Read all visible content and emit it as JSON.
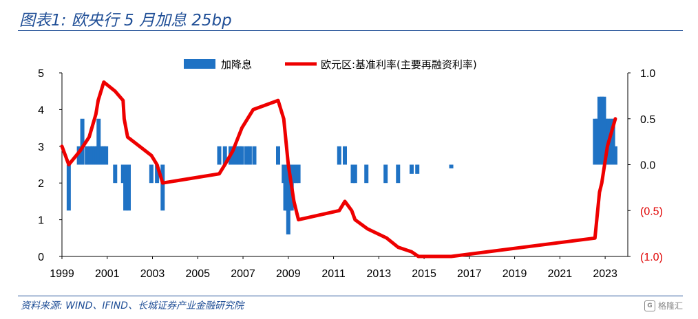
{
  "title": "图表1:  欧央行 5 月加息 25bp",
  "source": "资料来源:  WIND、IFIND、长城证券产业金融研究院",
  "watermark": "格隆汇",
  "colors": {
    "bar": "#1f72c4",
    "line": "#ee0000",
    "rule": "#1f4e96"
  },
  "chart_data": {
    "type": "bar+line",
    "legend": [
      "加降息",
      "欧元区:基准利率(主要再融资利率)"
    ],
    "legend_position": "top-center",
    "grid": false,
    "x_axis": {
      "range": [
        1999,
        2024
      ],
      "ticks": [
        "1999",
        "2001",
        "2003",
        "2005",
        "2007",
        "2009",
        "2011",
        "2013",
        "2015",
        "2017",
        "2019",
        "2021",
        "2023"
      ]
    },
    "y_left": {
      "range": [
        0,
        5
      ],
      "ticks": [
        "0",
        "1",
        "2",
        "3",
        "4",
        "5"
      ]
    },
    "y_right": {
      "range": [
        -1.0,
        1.0
      ],
      "ticks": [
        "(1.0)",
        "(0.5)",
        "0.0",
        "0.5",
        "1.0"
      ]
    },
    "series": [
      {
        "name": "加降息",
        "type": "bar",
        "axis": "left",
        "baseline": 2.5,
        "points": [
          [
            1999.3,
            1.25
          ],
          [
            1999.75,
            3.0
          ],
          [
            1999.9,
            3.75
          ],
          [
            2000.1,
            3.0
          ],
          [
            2000.25,
            3.0
          ],
          [
            2000.35,
            3.0
          ],
          [
            2000.45,
            3.0
          ],
          [
            2000.55,
            3.0
          ],
          [
            2000.62,
            3.75
          ],
          [
            2000.75,
            3.0
          ],
          [
            2000.85,
            3.0
          ],
          [
            2000.95,
            3.0
          ],
          [
            2001.35,
            2.0
          ],
          [
            2001.7,
            2.0
          ],
          [
            2001.8,
            1.25
          ],
          [
            2001.95,
            1.25
          ],
          [
            2002.95,
            2.0
          ],
          [
            2003.2,
            2.0
          ],
          [
            2003.45,
            1.25
          ],
          [
            2005.95,
            3.0
          ],
          [
            2006.2,
            3.0
          ],
          [
            2006.45,
            3.0
          ],
          [
            2006.6,
            3.0
          ],
          [
            2006.75,
            3.0
          ],
          [
            2006.85,
            3.0
          ],
          [
            2006.95,
            3.0
          ],
          [
            2007.15,
            3.0
          ],
          [
            2007.3,
            3.0
          ],
          [
            2007.5,
            3.0
          ],
          [
            2008.55,
            3.0
          ],
          [
            2008.8,
            2.0
          ],
          [
            2008.87,
            1.25
          ],
          [
            2008.93,
            1.25
          ],
          [
            2009.0,
            0.6
          ],
          [
            2009.08,
            1.25
          ],
          [
            2009.15,
            1.25
          ],
          [
            2009.25,
            2.0
          ],
          [
            2009.35,
            2.0
          ],
          [
            2009.45,
            2.0
          ],
          [
            2011.25,
            3.0
          ],
          [
            2011.5,
            3.0
          ],
          [
            2011.85,
            2.0
          ],
          [
            2011.95,
            2.0
          ],
          [
            2012.45,
            2.0
          ],
          [
            2013.3,
            2.0
          ],
          [
            2013.85,
            2.0
          ],
          [
            2014.45,
            2.25
          ],
          [
            2014.7,
            2.25
          ],
          [
            2016.2,
            2.4
          ],
          [
            2022.55,
            3.75
          ],
          [
            2022.65,
            3.75
          ],
          [
            2022.75,
            4.35
          ],
          [
            2022.85,
            4.35
          ],
          [
            2022.95,
            4.35
          ],
          [
            2023.05,
            3.75
          ],
          [
            2023.15,
            3.75
          ],
          [
            2023.25,
            3.75
          ],
          [
            2023.35,
            3.75
          ],
          [
            2023.45,
            3.0
          ]
        ]
      },
      {
        "name": "欧元区:基准利率(主要再融资利率)",
        "type": "line",
        "axis": "right",
        "points": [
          [
            1999.0,
            0.2
          ],
          [
            1999.3,
            0.0
          ],
          [
            1999.8,
            0.15
          ],
          [
            2000.2,
            0.3
          ],
          [
            2000.5,
            0.55
          ],
          [
            2000.6,
            0.7
          ],
          [
            2000.85,
            0.9
          ],
          [
            2001.35,
            0.8
          ],
          [
            2001.7,
            0.7
          ],
          [
            2001.75,
            0.5
          ],
          [
            2001.9,
            0.3
          ],
          [
            2002.95,
            0.1
          ],
          [
            2003.2,
            0.0
          ],
          [
            2003.45,
            -0.2
          ],
          [
            2005.95,
            -0.1
          ],
          [
            2006.2,
            0.0
          ],
          [
            2006.55,
            0.15
          ],
          [
            2006.95,
            0.4
          ],
          [
            2007.45,
            0.6
          ],
          [
            2008.55,
            0.7
          ],
          [
            2008.8,
            0.5
          ],
          [
            2009.0,
            0.0
          ],
          [
            2009.25,
            -0.4
          ],
          [
            2009.45,
            -0.6
          ],
          [
            2011.25,
            -0.5
          ],
          [
            2011.5,
            -0.4
          ],
          [
            2011.8,
            -0.5
          ],
          [
            2011.95,
            -0.6
          ],
          [
            2012.5,
            -0.7
          ],
          [
            2013.35,
            -0.8
          ],
          [
            2013.85,
            -0.9
          ],
          [
            2014.45,
            -0.95
          ],
          [
            2014.75,
            -1.0
          ],
          [
            2016.2,
            -1.0
          ],
          [
            2022.55,
            -0.8
          ],
          [
            2022.75,
            -0.3
          ],
          [
            2022.85,
            -0.2
          ],
          [
            2023.1,
            0.2
          ],
          [
            2023.45,
            0.5
          ]
        ]
      }
    ]
  }
}
